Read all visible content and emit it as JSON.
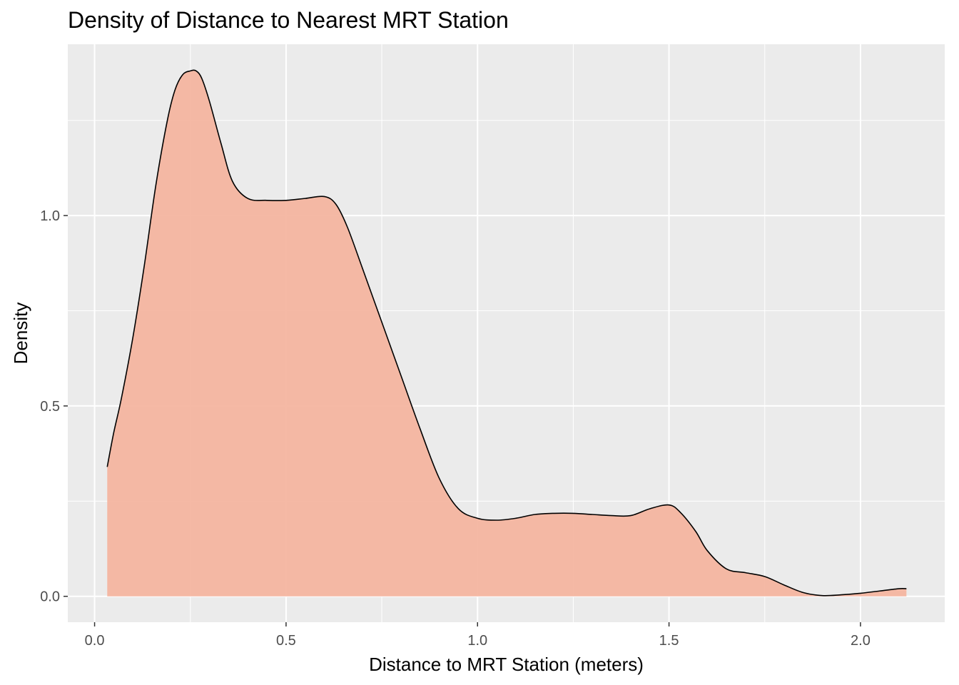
{
  "chart_data": {
    "type": "area",
    "title": "Density of Distance to Nearest MRT Station",
    "xlabel": "Distance to MRT Station (meters)",
    "ylabel": "Density",
    "xlim": [
      -0.07,
      2.22
    ],
    "ylim": [
      -0.068,
      1.45
    ],
    "x_ticks": [
      0.0,
      0.5,
      1.0,
      1.5,
      2.0
    ],
    "x_tick_labels": [
      "0.0",
      "0.5",
      "1.0",
      "1.5",
      "2.0"
    ],
    "y_ticks": [
      0.0,
      0.5,
      1.0
    ],
    "y_tick_labels": [
      "0.0",
      "0.5",
      "1.0"
    ],
    "grid": true,
    "fill_color": "#f4b39d",
    "line_color": "#000000",
    "panel_color": "#ebebeb",
    "x": [
      0.033,
      0.05,
      0.07,
      0.1,
      0.13,
      0.16,
      0.19,
      0.21,
      0.23,
      0.25,
      0.265,
      0.28,
      0.3,
      0.33,
      0.36,
      0.4,
      0.45,
      0.5,
      0.55,
      0.6,
      0.63,
      0.66,
      0.7,
      0.75,
      0.8,
      0.85,
      0.9,
      0.95,
      1.0,
      1.05,
      1.1,
      1.15,
      1.2,
      1.25,
      1.3,
      1.35,
      1.4,
      1.45,
      1.5,
      1.53,
      1.57,
      1.6,
      1.65,
      1.7,
      1.75,
      1.8,
      1.85,
      1.9,
      1.95,
      2.0,
      2.05,
      2.1,
      2.12
    ],
    "y": [
      0.34,
      0.43,
      0.52,
      0.68,
      0.87,
      1.08,
      1.25,
      1.33,
      1.37,
      1.38,
      1.38,
      1.36,
      1.3,
      1.19,
      1.09,
      1.045,
      1.04,
      1.04,
      1.045,
      1.05,
      1.03,
      0.97,
      0.86,
      0.72,
      0.58,
      0.44,
      0.31,
      0.23,
      0.205,
      0.2,
      0.205,
      0.215,
      0.218,
      0.218,
      0.215,
      0.212,
      0.212,
      0.23,
      0.24,
      0.22,
      0.17,
      0.12,
      0.072,
      0.062,
      0.052,
      0.03,
      0.01,
      0.002,
      0.004,
      0.008,
      0.014,
      0.02,
      0.02
    ]
  }
}
